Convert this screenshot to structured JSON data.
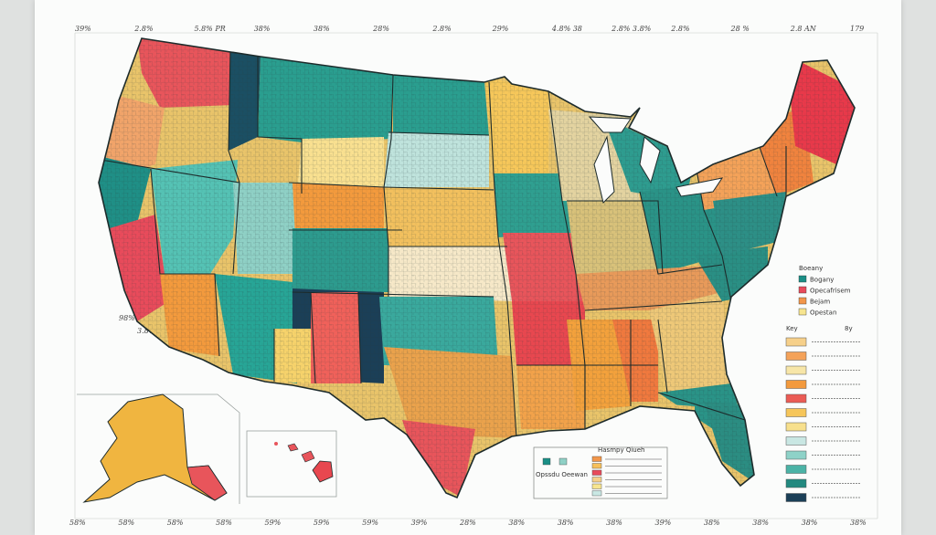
{
  "top_labels": [
    "39%",
    "2.8%",
    "5.8% PR",
    "38%",
    "38%",
    "28%",
    "2.8%",
    "29%",
    "4.8% 38",
    "2.8% 3.8%",
    "2.8%",
    "28 %",
    "2.8 AN",
    "179"
  ],
  "bottom_labels": [
    "58%",
    "58%",
    "58%",
    "58%",
    "59%",
    "59%",
    "59%",
    "39%",
    "28%",
    "38%",
    "38%",
    "38%",
    "39%",
    "38%",
    "38%",
    "38%",
    "38%"
  ],
  "west_labels": [
    "98% 88%",
    "3.8%"
  ],
  "legend": {
    "title": "Boeany",
    "entries": [
      {
        "label": "Bogany",
        "color": "#1a8f86"
      },
      {
        "label": "Opecafrisem",
        "color": "#e84b5b"
      },
      {
        "label": "Bejam",
        "color": "#f2964a"
      },
      {
        "label": "Opestan",
        "color": "#f7e58f"
      }
    ]
  },
  "key": {
    "title": "Key",
    "right_mark": "8y",
    "colors": [
      "#f6d08a",
      "#f4a259",
      "#f7e6a8",
      "#f39a3d",
      "#eb5c55",
      "#f6c65a",
      "#f7e08d",
      "#c9e7e3",
      "#8ed2c8",
      "#4bb3a6",
      "#22897f",
      "#1b3f57"
    ]
  },
  "inset_legend": {
    "title": "Hasmpy Qiueh",
    "subtitle": "Opssdu Oeewan",
    "colors": [
      "#1a8f86",
      "#8fd0c5",
      "#f2964a",
      "#f6c05c",
      "#e84b5b",
      "#f6d08a",
      "#f7e58f",
      "#c9e7e3"
    ]
  }
}
